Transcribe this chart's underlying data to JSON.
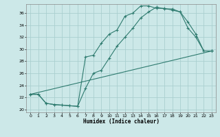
{
  "xlabel": "Humidex (Indice chaleur)",
  "ylabel": "",
  "bg_color": "#cce8e8",
  "grid_color": "#aacfcf",
  "line_color": "#2d7a6e",
  "xlim": [
    -0.5,
    23.5
  ],
  "ylim": [
    19.5,
    37.5
  ],
  "xticks": [
    0,
    1,
    2,
    3,
    4,
    5,
    6,
    7,
    8,
    9,
    10,
    11,
    12,
    13,
    14,
    15,
    16,
    17,
    18,
    19,
    20,
    21,
    22,
    23
  ],
  "yticks": [
    20,
    22,
    24,
    26,
    28,
    30,
    32,
    34,
    36
  ],
  "line1_x": [
    0,
    1,
    2,
    3,
    4,
    5,
    6,
    7,
    8,
    9,
    10,
    11,
    12,
    13,
    14,
    15,
    16,
    17,
    18,
    19,
    20,
    21,
    22,
    23
  ],
  "line1_y": [
    22.5,
    22.5,
    21.0,
    20.8,
    20.7,
    20.6,
    20.5,
    28.7,
    29.0,
    31.0,
    32.5,
    33.2,
    35.5,
    36.0,
    37.2,
    37.2,
    36.8,
    36.8,
    36.5,
    36.2,
    33.5,
    32.0,
    29.7,
    29.7
  ],
  "line2_x": [
    0,
    1,
    2,
    3,
    4,
    5,
    6,
    7,
    8,
    9,
    10,
    11,
    12,
    13,
    14,
    15,
    16,
    17,
    18,
    19,
    20,
    21,
    22,
    23
  ],
  "line2_y": [
    22.5,
    22.5,
    21.0,
    20.8,
    20.7,
    20.6,
    20.5,
    23.5,
    26.0,
    26.5,
    28.5,
    30.5,
    32.0,
    33.5,
    35.2,
    36.2,
    37.0,
    36.7,
    36.7,
    36.2,
    34.5,
    32.5,
    29.7,
    29.7
  ],
  "line3_x": [
    0,
    23
  ],
  "line3_y": [
    22.5,
    29.7
  ]
}
